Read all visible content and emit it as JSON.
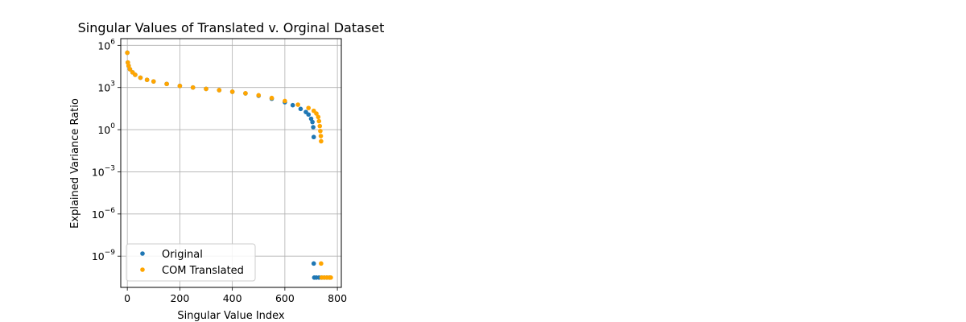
{
  "chart_data": {
    "type": "scatter",
    "title": "Singular Values of Translated v. Orginal Dataset",
    "xlabel": "Singular Value Index",
    "ylabel": "Explained Variance Ratio",
    "xlim": [
      -25,
      815
    ],
    "ylim": [
      6e-12,
      3000000.0
    ],
    "yscale": "log",
    "grid": true,
    "x_ticks": [
      0,
      200,
      400,
      600,
      800
    ],
    "y_ticks": [
      {
        "value": 1e-09,
        "mantissa": "10",
        "exp": "−9"
      },
      {
        "value": 1e-06,
        "mantissa": "10",
        "exp": "−6"
      },
      {
        "value": 0.001,
        "mantissa": "10",
        "exp": "−3"
      },
      {
        "value": 1,
        "mantissa": "10",
        "exp": "0"
      },
      {
        "value": 1000.0,
        "mantissa": "10",
        "exp": "3"
      },
      {
        "value": 1000000.0,
        "mantissa": "10",
        "exp": "6"
      }
    ],
    "legend_position": "lower-left",
    "series": [
      {
        "name": "Original",
        "color": "#1f77b4",
        "points": [
          [
            0,
            300000
          ],
          [
            2,
            60000
          ],
          [
            5,
            35000
          ],
          [
            10,
            20000
          ],
          [
            20,
            12000
          ],
          [
            30,
            8000
          ],
          [
            50,
            5000
          ],
          [
            75,
            3500
          ],
          [
            100,
            2700
          ],
          [
            150,
            1800
          ],
          [
            200,
            1300
          ],
          [
            250,
            1000
          ],
          [
            300,
            800
          ],
          [
            350,
            650
          ],
          [
            400,
            500
          ],
          [
            450,
            380
          ],
          [
            500,
            260
          ],
          [
            550,
            160
          ],
          [
            600,
            90
          ],
          [
            630,
            55
          ],
          [
            660,
            30
          ],
          [
            680,
            18
          ],
          [
            690,
            12
          ],
          [
            700,
            6
          ],
          [
            705,
            3.5
          ],
          [
            708,
            1.5
          ],
          [
            710,
            0.3
          ],
          [
            710,
            3e-10
          ],
          [
            712,
            3e-11
          ],
          [
            720,
            3e-11
          ],
          [
            730,
            3e-11
          ],
          [
            740,
            3e-11
          ],
          [
            750,
            3e-11
          ],
          [
            760,
            3e-11
          ],
          [
            770,
            3e-11
          ]
        ]
      },
      {
        "name": "COM Translated",
        "color": "#ffa500",
        "points": [
          [
            0,
            300000
          ],
          [
            2,
            60000
          ],
          [
            5,
            35000
          ],
          [
            10,
            20000
          ],
          [
            20,
            12000
          ],
          [
            30,
            8000
          ],
          [
            50,
            5000
          ],
          [
            75,
            3500
          ],
          [
            100,
            2700
          ],
          [
            150,
            1800
          ],
          [
            200,
            1300
          ],
          [
            250,
            1000
          ],
          [
            300,
            800
          ],
          [
            350,
            650
          ],
          [
            400,
            500
          ],
          [
            450,
            390
          ],
          [
            500,
            280
          ],
          [
            550,
            180
          ],
          [
            600,
            110
          ],
          [
            650,
            60
          ],
          [
            690,
            35
          ],
          [
            710,
            22
          ],
          [
            720,
            14
          ],
          [
            727,
            8
          ],
          [
            730,
            4
          ],
          [
            733,
            1.8
          ],
          [
            735,
            0.8
          ],
          [
            737,
            0.35
          ],
          [
            738,
            0.15
          ],
          [
            738,
            3e-10
          ],
          [
            740,
            3e-11
          ],
          [
            750,
            3e-11
          ],
          [
            760,
            3e-11
          ],
          [
            770,
            3e-11
          ],
          [
            775,
            3e-11
          ]
        ]
      }
    ]
  }
}
